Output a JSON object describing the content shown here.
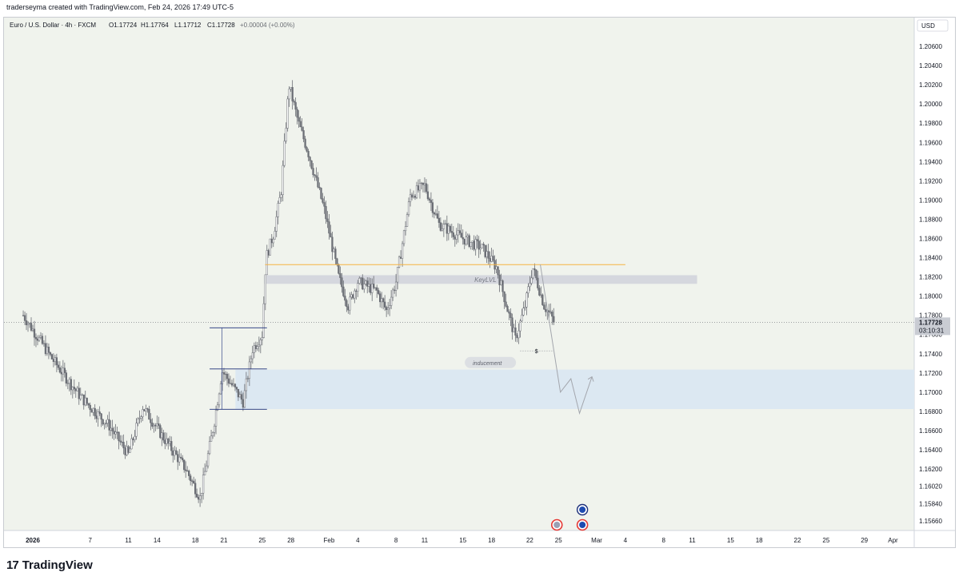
{
  "header": {
    "credit": "traderseyma created with TradingView.com, Feb 24, 2026 17:49 UTC-5"
  },
  "legend": {
    "symbol": "Euro / U.S. Dollar · 4h · FXCM",
    "open": "O1.17724",
    "high": "H1.17764",
    "low": "L1.17712",
    "close": "C1.17728",
    "change": "+0.00004 (+0.00%)"
  },
  "price_axis": {
    "currency": "USD",
    "last_price": "1.17728",
    "countdown": "03:10:31"
  },
  "annotations": {
    "key_level": "KeyLVL",
    "inducement": "inducement",
    "dollar_mark": "$"
  },
  "footer": {
    "brand": "TradingView",
    "logo_mark": "17"
  },
  "colors": {
    "background": "#f0f3ed",
    "candle": "#6b6e75",
    "orange_line": "#f5b342",
    "key_level_box": "#d1d4dc",
    "demand_zone": "#dce8f2",
    "range_lines": "#1c2f7a",
    "last_price_badge": "#c9ccd3"
  },
  "chart_data": {
    "type": "candlestick",
    "title": "",
    "instrument": "EUR/USD",
    "timeframe": "4h",
    "ylim": [
      1.1556,
      1.209
    ],
    "yticks": [
      1.206,
      1.204,
      1.202,
      1.2,
      1.198,
      1.196,
      1.194,
      1.192,
      1.19,
      1.188,
      1.186,
      1.184,
      1.182,
      1.18,
      1.178,
      1.176,
      1.174,
      1.172,
      1.17,
      1.168,
      1.166,
      1.164,
      1.162,
      1.1602,
      1.1584,
      1.1566
    ],
    "ytick_labels": [
      "1.20600",
      "1.20400",
      "1.20200",
      "1.20000",
      "1.19800",
      "1.19600",
      "1.19400",
      "1.19200",
      "1.19000",
      "1.18800",
      "1.18600",
      "1.18400",
      "1.18200",
      "1.18000",
      "1.17800",
      "1.17600",
      "1.17400",
      "1.17200",
      "1.17000",
      "1.16800",
      "1.16600",
      "1.16400",
      "1.16200",
      "1.16020",
      "1.15840",
      "1.15660"
    ],
    "xticks": [
      {
        "label": "2026",
        "bold": true,
        "day": 0
      },
      {
        "label": "7",
        "day": 6
      },
      {
        "label": "11",
        "day": 10
      },
      {
        "label": "14",
        "day": 13
      },
      {
        "label": "18",
        "day": 17
      },
      {
        "label": "21",
        "day": 20
      },
      {
        "label": "25",
        "day": 24
      },
      {
        "label": "28",
        "day": 27
      },
      {
        "label": "Feb",
        "day": 31
      },
      {
        "label": "4",
        "day": 34
      },
      {
        "label": "8",
        "day": 38
      },
      {
        "label": "11",
        "day": 41
      },
      {
        "label": "15",
        "day": 45
      },
      {
        "label": "18",
        "day": 48
      },
      {
        "label": "22",
        "day": 52
      },
      {
        "label": "25",
        "day": 55
      },
      {
        "label": "Mar",
        "day": 59
      },
      {
        "label": "4",
        "day": 62
      },
      {
        "label": "8",
        "day": 66
      },
      {
        "label": "11",
        "day": 69
      },
      {
        "label": "15",
        "day": 73
      },
      {
        "label": "18",
        "day": 76
      },
      {
        "label": "22",
        "day": 80
      },
      {
        "label": "25",
        "day": 83
      },
      {
        "label": "29",
        "day": 87
      },
      {
        "label": "Apr",
        "day": 90
      }
    ],
    "last_price": 1.17728,
    "anchors": [
      {
        "day": -1.0,
        "price": 1.178
      },
      {
        "day": 2.0,
        "price": 1.1735
      },
      {
        "day": 5.0,
        "price": 1.1695
      },
      {
        "day": 8.0,
        "price": 1.1665
      },
      {
        "day": 10.0,
        "price": 1.1635
      },
      {
        "day": 11.5,
        "price": 1.1685
      },
      {
        "day": 13.5,
        "price": 1.1655
      },
      {
        "day": 16.0,
        "price": 1.162
      },
      {
        "day": 17.5,
        "price": 1.159
      },
      {
        "day": 19.0,
        "price": 1.167
      },
      {
        "day": 19.8,
        "price": 1.1722
      },
      {
        "day": 21.0,
        "price": 1.1705
      },
      {
        "day": 22.0,
        "price": 1.169
      },
      {
        "day": 23.0,
        "price": 1.1745
      },
      {
        "day": 24.0,
        "price": 1.176
      },
      {
        "day": 24.4,
        "price": 1.184
      },
      {
        "day": 25.2,
        "price": 1.1865
      },
      {
        "day": 26.0,
        "price": 1.191
      },
      {
        "day": 26.8,
        "price": 1.202
      },
      {
        "day": 27.8,
        "price": 1.198
      },
      {
        "day": 28.8,
        "price": 1.195
      },
      {
        "day": 30.5,
        "price": 1.189
      },
      {
        "day": 32.0,
        "price": 1.182
      },
      {
        "day": 33.0,
        "price": 1.179
      },
      {
        "day": 34.0,
        "price": 1.1815
      },
      {
        "day": 36.0,
        "price": 1.1805
      },
      {
        "day": 37.0,
        "price": 1.1785
      },
      {
        "day": 38.0,
        "price": 1.1815
      },
      {
        "day": 39.5,
        "price": 1.1905
      },
      {
        "day": 41.0,
        "price": 1.1915
      },
      {
        "day": 42.5,
        "price": 1.1875
      },
      {
        "day": 45.0,
        "price": 1.186
      },
      {
        "day": 47.0,
        "price": 1.185
      },
      {
        "day": 48.5,
        "price": 1.183
      },
      {
        "day": 50.5,
        "price": 1.1755
      },
      {
        "day": 51.5,
        "price": 1.179
      },
      {
        "day": 52.3,
        "price": 1.183
      },
      {
        "day": 53.5,
        "price": 1.179
      },
      {
        "day": 54.6,
        "price": 1.1773
      }
    ],
    "key_level_zone": [
      1.18128,
      1.18218
    ],
    "orange_level": 1.18328,
    "demand_zone": [
      1.16824,
      1.17235
    ],
    "range_lines": [
      1.1767,
      1.17242,
      1.16822
    ],
    "projection_path": [
      {
        "day": 53.1,
        "price": 1.18328
      },
      {
        "day": 55.2,
        "price": 1.17
      },
      {
        "day": 56.3,
        "price": 1.1714
      },
      {
        "day": 57.2,
        "price": 1.1678
      },
      {
        "day": 58.5,
        "price": 1.1716
      }
    ]
  }
}
